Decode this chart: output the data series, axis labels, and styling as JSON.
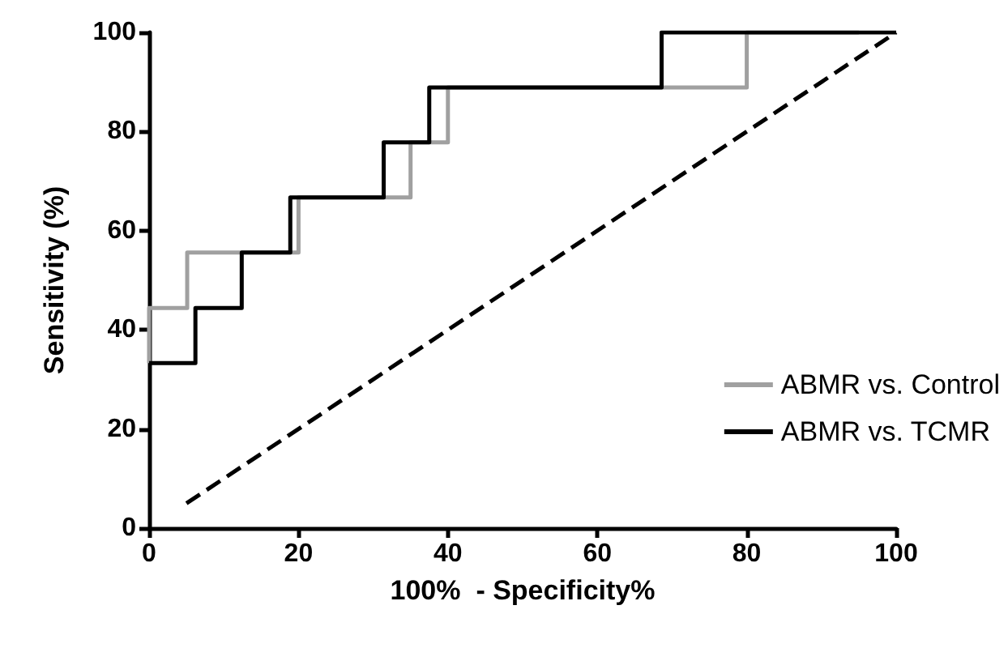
{
  "chart_data": {
    "type": "step",
    "xlabel": "100%  - Specificity%",
    "ylabel": "Sensitivity (%)",
    "xlim": [
      0,
      100
    ],
    "xticks": [
      0,
      20,
      40,
      60,
      80,
      100
    ],
    "ylim": [
      0,
      100
    ],
    "yticks": [
      0,
      20,
      40,
      60,
      80,
      100
    ],
    "grid": false,
    "legend": "bottom right",
    "marker": "none",
    "series": [
      {
        "name": "ABMR vs. Control",
        "color": "#a0a0a0",
        "x": [
          0,
          0,
          5.1,
          20,
          35,
          40,
          80,
          95
        ],
        "values": [
          33.3,
          44.4,
          55.6,
          66.7,
          77.8,
          88.9,
          100,
          100
        ]
      },
      {
        "name": "ABMR vs. TCMR",
        "color": "#000000",
        "x": [
          0,
          6.2,
          12.4,
          18.9,
          31.4,
          37.5,
          68.6,
          100
        ],
        "values": [
          33.3,
          44.4,
          55.6,
          66.7,
          77.8,
          88.9,
          100,
          100
        ]
      },
      {
        "type": "line",
        "color": "#000000",
        "line_style": "dashed",
        "x": [
          5,
          100
        ],
        "values": [
          5,
          100
        ]
      }
    ]
  }
}
